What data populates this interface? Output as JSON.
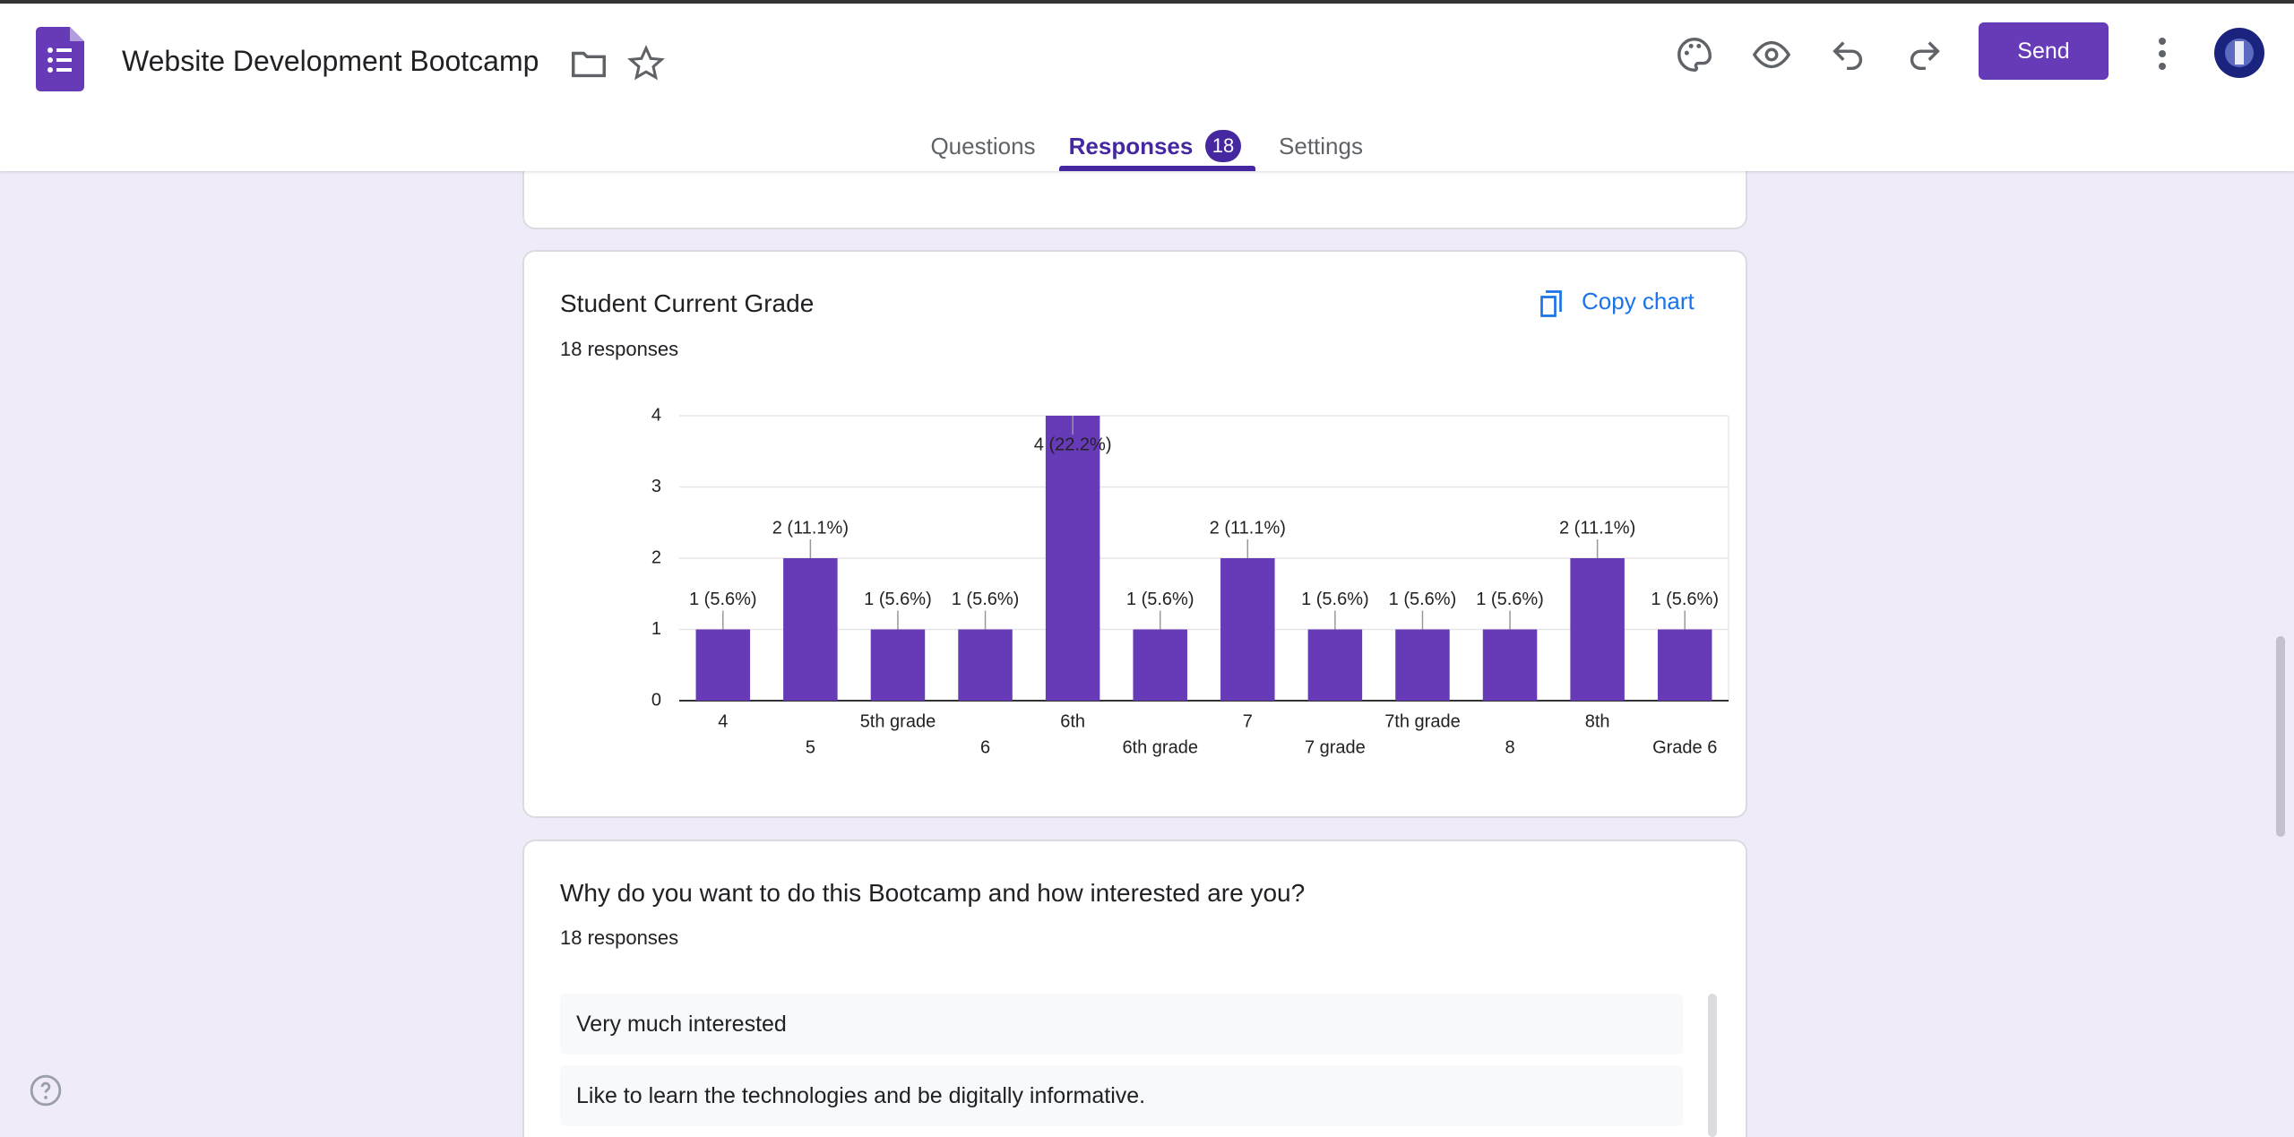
{
  "header": {
    "title": "Website Development Bootcamp",
    "send": "Send",
    "tabs": [
      "Questions",
      "Responses",
      "Settings"
    ],
    "responses_count": 18
  },
  "chart_card": {
    "copy": "Copy chart",
    "responses": "18 responses"
  },
  "chart_data": {
    "type": "bar",
    "title": "Student Current Grade",
    "categories": [
      "4",
      "5",
      "5th grade",
      "6",
      "6th",
      "6th grade",
      "7",
      "7 grade",
      "7th grade",
      "8",
      "8th",
      "Grade 6"
    ],
    "values": [
      1,
      2,
      1,
      1,
      4,
      1,
      2,
      1,
      1,
      1,
      2,
      1
    ],
    "value_labels": [
      "1 (5.6%)",
      "2 (11.1%)",
      "1 (5.6%)",
      "1 (5.6%)",
      "4 (22.2%)",
      "1 (5.6%)",
      "2 (11.1%)",
      "1 (5.6%)",
      "1 (5.6%)",
      "1 (5.6%)",
      "2 (11.1%)",
      "1 (5.6%)"
    ],
    "color": "#673ab7",
    "ylim": [
      0,
      4
    ],
    "yticks": [
      0,
      1,
      2,
      3,
      4
    ],
    "grid": true
  },
  "question_card": {
    "title": "Why do you want to do this Bootcamp and how interested are you?",
    "responses": "18 responses",
    "answers": [
      "Very much interested",
      "Like to learn the technologies and be digitally informative."
    ]
  }
}
